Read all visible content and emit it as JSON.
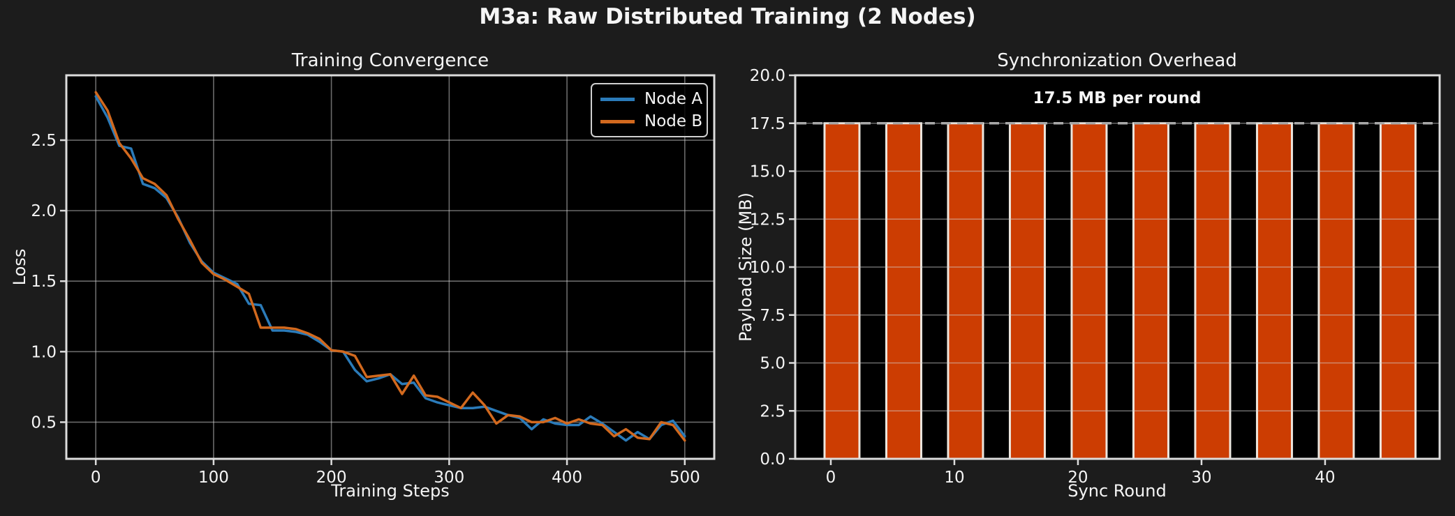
{
  "main_title": "M3a: Raw Distributed Training (2 Nodes)",
  "colors": {
    "background": "#1c1c1c",
    "plot_background": "#000000",
    "text": "#f5f5f5",
    "grid": "#d4d4d4",
    "spine": "#dcdcdc",
    "node_a": "#2b7bb9",
    "node_b": "#d2691e",
    "bar_fill": "#cc3d02",
    "bar_edge": "#ece6de",
    "dashed_line": "#a8a8a8"
  },
  "chart_data": [
    {
      "type": "line",
      "title": "Training Convergence",
      "xlabel": "Training Steps",
      "ylabel": "Loss",
      "x": [
        0,
        10,
        20,
        30,
        40,
        50,
        60,
        70,
        80,
        90,
        100,
        110,
        120,
        130,
        140,
        150,
        160,
        170,
        180,
        190,
        200,
        210,
        220,
        230,
        240,
        250,
        260,
        270,
        280,
        290,
        300,
        310,
        320,
        330,
        340,
        350,
        360,
        370,
        380,
        390,
        400,
        410,
        420,
        430,
        440,
        450,
        460,
        470,
        480,
        490,
        500
      ],
      "series": [
        {
          "name": "Node A",
          "values": [
            2.81,
            2.66,
            2.46,
            2.44,
            2.19,
            2.16,
            2.09,
            1.95,
            1.77,
            1.64,
            1.56,
            1.52,
            1.48,
            1.34,
            1.33,
            1.15,
            1.15,
            1.14,
            1.12,
            1.07,
            1.01,
            1.0,
            0.87,
            0.79,
            0.81,
            0.84,
            0.77,
            0.78,
            0.67,
            0.64,
            0.62,
            0.6,
            0.6,
            0.61,
            0.58,
            0.55,
            0.53,
            0.45,
            0.52,
            0.49,
            0.48,
            0.48,
            0.54,
            0.49,
            0.43,
            0.37,
            0.43,
            0.38,
            0.48,
            0.51,
            0.4
          ]
        },
        {
          "name": "Node B",
          "values": [
            2.84,
            2.71,
            2.48,
            2.37,
            2.23,
            2.19,
            2.11,
            1.94,
            1.79,
            1.63,
            1.55,
            1.51,
            1.46,
            1.41,
            1.17,
            1.17,
            1.17,
            1.16,
            1.13,
            1.09,
            1.01,
            1.0,
            0.97,
            0.82,
            0.83,
            0.84,
            0.7,
            0.83,
            0.69,
            0.68,
            0.64,
            0.6,
            0.71,
            0.62,
            0.49,
            0.55,
            0.54,
            0.5,
            0.5,
            0.53,
            0.49,
            0.52,
            0.49,
            0.48,
            0.4,
            0.45,
            0.39,
            0.38,
            0.5,
            0.48,
            0.37
          ]
        }
      ],
      "xlim": [
        -25,
        525
      ],
      "ylim": [
        0.24,
        2.96
      ],
      "xticks": [
        0,
        100,
        200,
        300,
        400,
        500
      ],
      "yticks": [
        0.5,
        1.0,
        1.5,
        2.0,
        2.5
      ],
      "ytick_decimals": 1,
      "grid": true,
      "legend_position": "upper right"
    },
    {
      "type": "bar",
      "title": "Synchronization Overhead",
      "xlabel": "Sync Round",
      "ylabel": "Payload Size (MB)",
      "categories": [
        0,
        5,
        10,
        15,
        20,
        25,
        30,
        35,
        40,
        45
      ],
      "values": [
        17.5,
        17.5,
        17.5,
        17.5,
        17.5,
        17.5,
        17.5,
        17.5,
        17.5,
        17.5
      ],
      "xlim": [
        -2.88,
        49.27
      ],
      "ylim": [
        0,
        20
      ],
      "xticks": [
        0,
        10,
        20,
        30,
        40
      ],
      "yticks": [
        0.0,
        2.5,
        5.0,
        7.5,
        10.0,
        12.5,
        15.0,
        17.5,
        20.0
      ],
      "ytick_decimals": 1,
      "grid": true,
      "annotation": "17.5 MB per round",
      "reference_line": 17.5
    }
  ]
}
